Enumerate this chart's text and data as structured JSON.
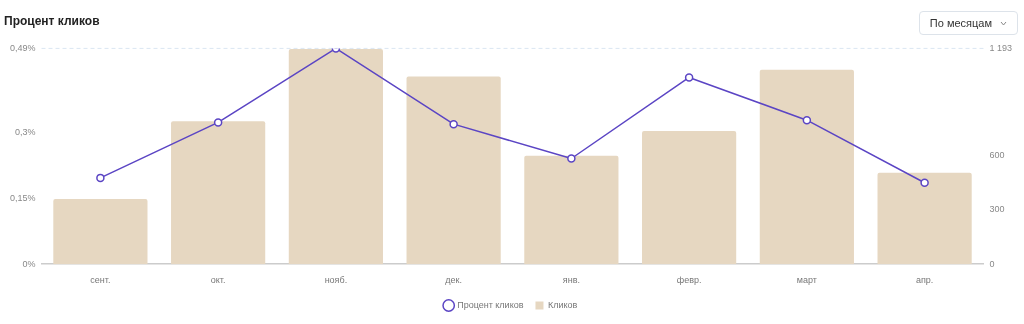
{
  "chart_data": {
    "type": "bar",
    "title": "Процент кликов",
    "categories": [
      "сент.",
      "окт.",
      "нояб.",
      "дек.",
      "янв.",
      "февр.",
      "март",
      "апр."
    ],
    "series": [
      {
        "name": "Процент кликов",
        "type": "line",
        "color": "#5b45c4",
        "values": [
          0.196,
          0.322,
          0.49,
          0.318,
          0.24,
          0.424,
          0.327,
          0.185
        ]
      },
      {
        "name": "Кликов",
        "axis": "y2",
        "color": "#e6d7c1",
        "values": [
          360,
          790,
          1190,
          1037,
          600,
          736,
          1075,
          505
        ]
      }
    ],
    "ylim": [
      0,
      0.49
    ],
    "yticks": [
      {
        "value": 0,
        "label": "0%"
      },
      {
        "value": 0.15,
        "label": "0,15%"
      },
      {
        "value": 0.3,
        "label": "0,3%"
      },
      {
        "value": 0.49,
        "label": "0,49%"
      }
    ],
    "y2lim": [
      0,
      1193
    ],
    "y2ticks": [
      0,
      300,
      600,
      {
        "value": 1193,
        "label": "1 193"
      }
    ],
    "ref_lines": [
      {
        "axis": "y",
        "value": 0.49,
        "color": "#dbe6f2",
        "line_style": "dashed"
      }
    ],
    "grid": false,
    "legend": "bottom",
    "marker": "circle",
    "line_style": "solid",
    "annotations": [
      "По месяцам"
    ]
  }
}
